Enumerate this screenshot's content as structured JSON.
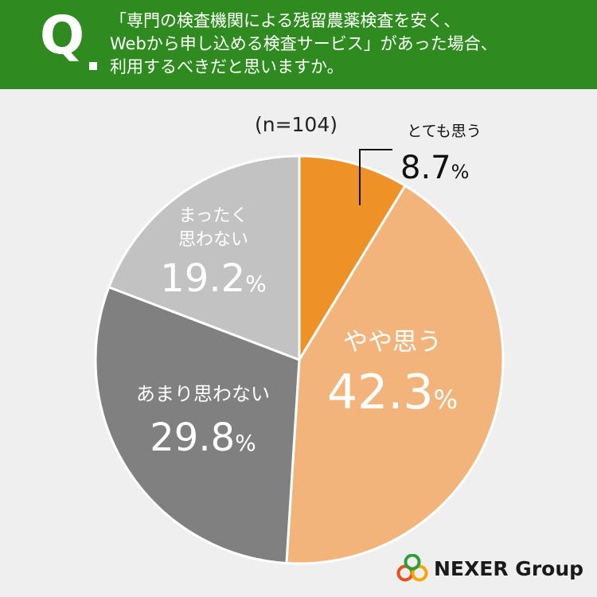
{
  "header": {
    "q_label": "Q",
    "question_lines": [
      "「専門の検査機関による残留農薬検査を安く、",
      "Webから申し込める検査サービス」があった場合、",
      "利用するべきだと思いますか。"
    ]
  },
  "chart_data": {
    "type": "pie",
    "sample_size": "(n=104)",
    "start_angle_deg": 0,
    "direction": "clockwise",
    "slices": [
      {
        "label": "とても思う",
        "value": 8.7,
        "display": "8.7",
        "unit": "%",
        "color": "#ee9227",
        "text_color": "#111111"
      },
      {
        "label": "やや思う",
        "value": 42.3,
        "display": "42.3",
        "unit": "%",
        "color": "#f3b47b",
        "text_color": "#ffffff"
      },
      {
        "label": "あまり思わない",
        "value": 29.8,
        "display": "29.8",
        "unit": "%",
        "color": "#808080",
        "text_color": "#ffffff"
      },
      {
        "label_lines": [
          "まったく",
          "思わない"
        ],
        "value": 19.2,
        "display": "19.2",
        "unit": "%",
        "color": "#c2c2c2",
        "text_color": "#ffffff"
      }
    ]
  },
  "logo": {
    "text": "NEXER Group",
    "ring_colors": [
      "#e94e1b",
      "#f3a800",
      "#2f9e3a"
    ]
  },
  "colors": {
    "header_bg": "#2f8a1f",
    "background": "#efefef"
  }
}
